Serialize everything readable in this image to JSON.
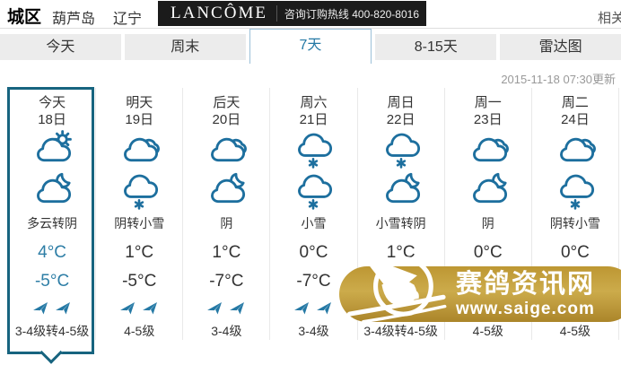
{
  "header": {
    "city_type": "城区",
    "city": "葫芦岛",
    "province": "辽宁",
    "ad": {
      "brand": "LANCÔME",
      "hotline": "咨询订购热线 400-820-8016"
    },
    "related_link": "相关"
  },
  "tabs": [
    {
      "label": "今天",
      "active": false
    },
    {
      "label": "周末",
      "active": false
    },
    {
      "label": "7天",
      "active": true
    },
    {
      "label": "8-15天",
      "active": false
    },
    {
      "label": "雷达图",
      "active": false
    }
  ],
  "update_time": "2015-11-18 07:30更新",
  "forecast": {
    "days": [
      {
        "day_label": "今天",
        "date": "18日",
        "day_icon": "cloud-sun",
        "night_icon": "cloud-moon",
        "condition": "多云转阴",
        "high": "4°C",
        "low": "-5°C",
        "wind_level": "3-4级转4-5级",
        "selected": true
      },
      {
        "day_label": "明天",
        "date": "19日",
        "day_icon": "cloudy",
        "night_icon": "cloud-snow",
        "condition": "阴转小雪",
        "high": "1°C",
        "low": "-5°C",
        "wind_level": "4-5级",
        "selected": false
      },
      {
        "day_label": "后天",
        "date": "20日",
        "day_icon": "cloudy",
        "night_icon": "cloud-moon",
        "condition": "阴",
        "high": "1°C",
        "low": "-7°C",
        "wind_level": "3-4级",
        "selected": false
      },
      {
        "day_label": "周六",
        "date": "21日",
        "day_icon": "cloud-snow",
        "night_icon": "cloud-snow",
        "condition": "小雪",
        "high": "0°C",
        "low": "-7°C",
        "wind_level": "3-4级",
        "selected": false
      },
      {
        "day_label": "周日",
        "date": "22日",
        "day_icon": "cloud-snow",
        "night_icon": "cloud-moon",
        "condition": "小雪转阴",
        "high": "1°C",
        "low": "",
        "wind_level": "3-4级转4-5级",
        "selected": false
      },
      {
        "day_label": "周一",
        "date": "23日",
        "day_icon": "cloudy",
        "night_icon": "cloud-moon",
        "condition": "阴",
        "high": "0°C",
        "low": "",
        "wind_level": "4-5级",
        "selected": false
      },
      {
        "day_label": "周二",
        "date": "24日",
        "day_icon": "cloudy",
        "night_icon": "cloud-snow",
        "condition": "阴转小雪",
        "high": "0°C",
        "low": "",
        "wind_level": "4-5级",
        "selected": false
      }
    ]
  },
  "watermark": {
    "site_name": "赛鸽资讯网",
    "site_url": "www.saige.com"
  },
  "colors": {
    "accent_blue": "#2579a5",
    "icon_blue": "#1d6f9e",
    "today_border": "#17647f",
    "watermark_gold": "#c5a02f",
    "banner_black": "#1b1b1b"
  }
}
